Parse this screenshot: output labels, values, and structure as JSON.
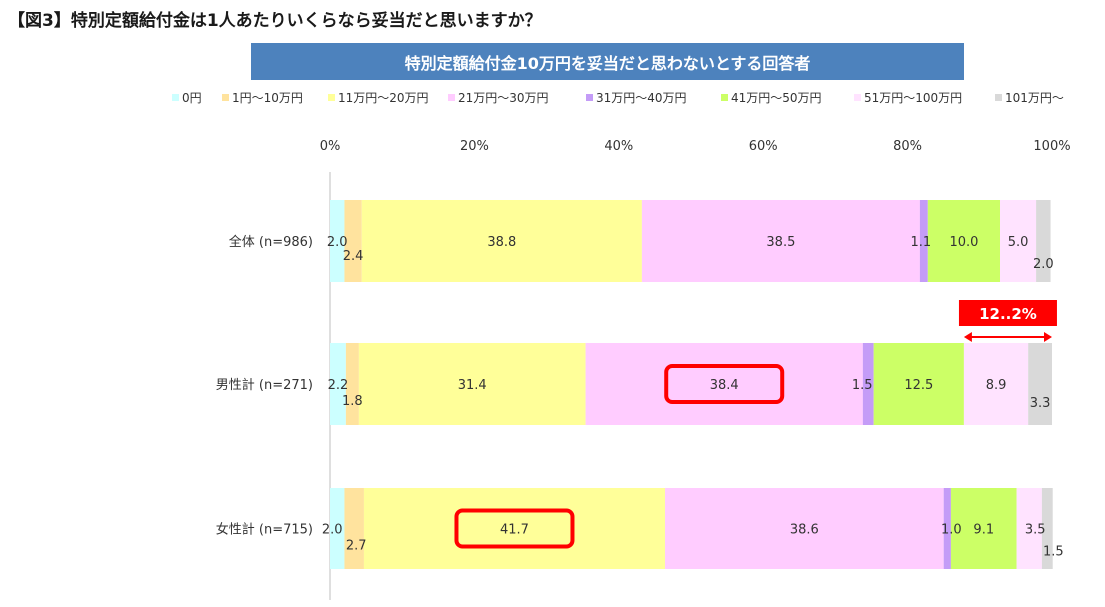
{
  "figure_title": "【図3】特別定額給付金は1人あたりいくらなら妥当だと思いますか？",
  "banner": "特別定額給付金10万円を妥当だと思わないとする回答者",
  "chart_data": {
    "type": "bar",
    "orientation": "horizontal",
    "stacked": true,
    "normalized_100": true,
    "xlim": [
      0,
      100
    ],
    "xticks": [
      "0%",
      "20%",
      "40%",
      "60%",
      "80%",
      "100%"
    ],
    "legend_position": "top",
    "categories": [
      "全体 (n=986)",
      "男性計 (n=271)",
      "女性計 (n=715)"
    ],
    "series": [
      {
        "name": "0円",
        "color": "#ccffff",
        "values": [
          2.0,
          2.2,
          2.0
        ]
      },
      {
        "name": "1円～10万円",
        "color": "#ffe39e",
        "values": [
          2.4,
          1.8,
          2.7
        ]
      },
      {
        "name": "11万円～20万円",
        "color": "#ffff99",
        "values": [
          38.8,
          31.4,
          41.7
        ]
      },
      {
        "name": "21万円～30万円",
        "color": "#ffccff",
        "values": [
          38.5,
          38.4,
          38.6
        ]
      },
      {
        "name": "31万円～40万円",
        "color": "#c49cf7",
        "values": [
          1.1,
          1.5,
          1.0
        ]
      },
      {
        "name": "41万円～50万円",
        "color": "#ccff66",
        "values": [
          10.0,
          12.5,
          9.1
        ]
      },
      {
        "name": "51万円～100万円",
        "color": "#ffe3ff",
        "values": [
          5.0,
          8.9,
          3.5
        ]
      },
      {
        "name": "101万円～",
        "color": "#d9d9d9",
        "values": [
          2.0,
          3.3,
          1.5
        ]
      }
    ],
    "highlights": [
      {
        "row": 1,
        "series": 3,
        "label": "38.4"
      },
      {
        "row": 2,
        "series": 2,
        "label": "41.7"
      }
    ],
    "range_annotation": {
      "row": 1,
      "label": "12..2%",
      "from_series": 6,
      "to_series": 7,
      "color": "#ff0000"
    }
  }
}
